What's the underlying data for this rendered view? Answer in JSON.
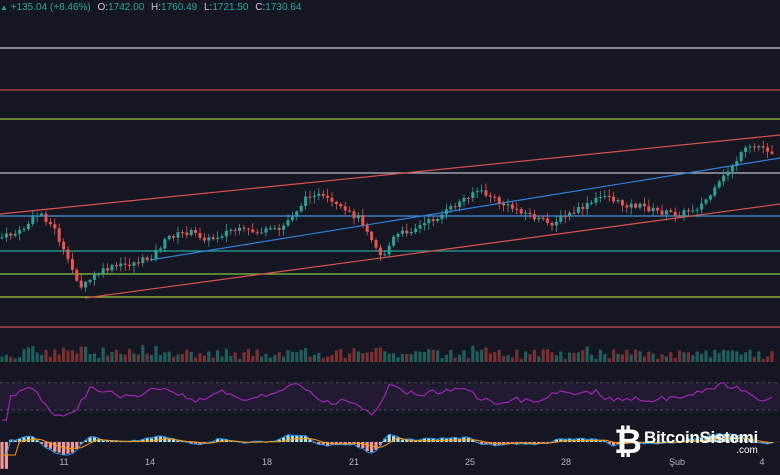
{
  "header": {
    "arrow_icon": "triangle-up-icon",
    "change": "+135.04 (+8.46%)",
    "open_label": "O:",
    "open": "1742.00",
    "high_label": "H:",
    "high": "1760.49",
    "low_label": "L:",
    "low": "1721.50",
    "close_label": "C:",
    "close": "1730.64"
  },
  "xaxis": {
    "labels": [
      "11",
      "14",
      "18",
      "21",
      "25",
      "28",
      "Şub",
      "4"
    ]
  },
  "watermark": {
    "icon": "bitcoin-b-logo-icon",
    "name": "BitcoinSistemi",
    "domain": ".com"
  },
  "colors": {
    "background": "#141722",
    "up": "#26a69a",
    "down": "#ef5350",
    "support_resistance_red": "#c44a47",
    "level_green": "#9bc53d",
    "level_teal": "#26a69a",
    "level_white": "#d1d4dc",
    "trend_blue": "#2e7fd8",
    "rsi": "#8e24aa"
  }
}
